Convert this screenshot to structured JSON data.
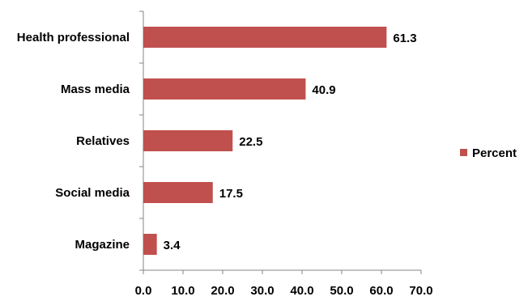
{
  "chart_data": {
    "type": "bar",
    "orientation": "horizontal",
    "categories": [
      "Health professional",
      "Mass media",
      "Relatives",
      "Social media",
      "Magazine"
    ],
    "series": [
      {
        "name": "Percent",
        "values": [
          61.3,
          40.9,
          22.5,
          17.5,
          3.4
        ],
        "color": "#c0504d"
      }
    ],
    "data_labels": [
      "61.3",
      "40.9",
      "22.5",
      "17.5",
      "3.4"
    ],
    "xlim": [
      0,
      70
    ],
    "x_ticks": [
      0,
      10,
      20,
      30,
      40,
      50,
      60,
      70
    ],
    "x_tick_labels": [
      "0.0",
      "10.0",
      "20.0",
      "30.0",
      "40.0",
      "50.0",
      "60.0",
      "70.0"
    ],
    "grid": false,
    "legend": {
      "placement": "right",
      "entries": [
        "Percent"
      ]
    },
    "title": "",
    "xlabel": "",
    "ylabel": ""
  }
}
